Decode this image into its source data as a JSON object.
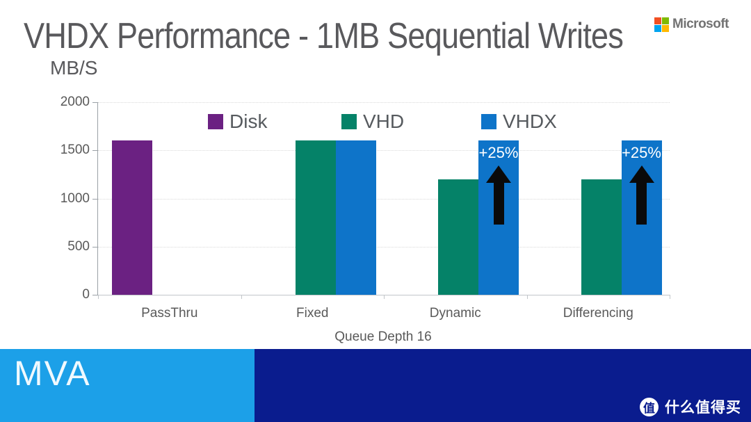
{
  "slide": {
    "title": "VHDX Performance - 1MB Sequential Writes",
    "unit_label": "MB/S"
  },
  "microsoft_logo": {
    "label": "Microsoft",
    "square_colors": [
      "#F25022",
      "#7FBA00",
      "#00A4EF",
      "#FFB900"
    ]
  },
  "chart_data": {
    "type": "bar",
    "title": "VHDX Performance - 1MB Sequential Writes",
    "ylabel": "MB/S",
    "xlabel": "Queue Depth 16",
    "categories": [
      "PassThru",
      "Fixed",
      "Dynamic",
      "Differencing"
    ],
    "series": [
      {
        "name": "Disk",
        "color": "#6B2182",
        "values": [
          1600,
          null,
          null,
          null
        ]
      },
      {
        "name": "VHD",
        "color": "#058268",
        "values": [
          null,
          1600,
          1200,
          1200
        ]
      },
      {
        "name": "VHDX",
        "color": "#0E74C9",
        "values": [
          null,
          1600,
          1600,
          1600
        ]
      }
    ],
    "ylim": [
      0,
      2000
    ],
    "yticks": [
      0,
      500,
      1000,
      1500,
      2000
    ],
    "grid": "horizontal-dotted",
    "legend_position": "top-inside",
    "annotations": [
      {
        "category": "Dynamic",
        "series": "VHDX",
        "label": "+25%",
        "arrow": "up"
      },
      {
        "category": "Differencing",
        "series": "VHDX",
        "label": "+25%",
        "arrow": "up"
      }
    ]
  },
  "footer": {
    "mva_label": "MVA",
    "light_blue": "#1CA0E8",
    "navy": "#0A1C8E"
  },
  "watermark": {
    "badge_char": "值",
    "label": "什么值得买"
  }
}
